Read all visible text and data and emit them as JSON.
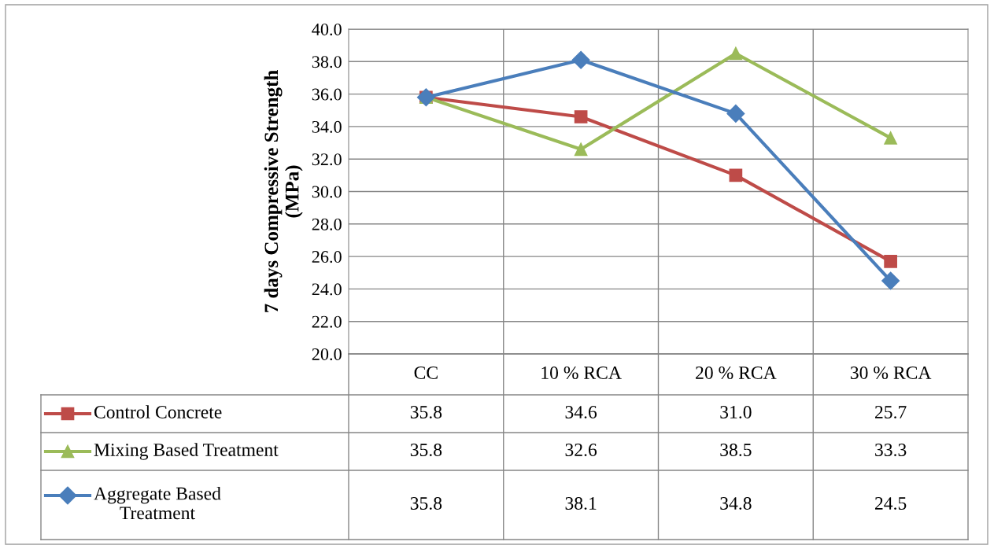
{
  "chart_data": {
    "type": "line",
    "ylabel": "7 days Compressive Strength\n(MPa)",
    "categories": [
      "CC",
      "10 % RCA",
      "20 % RCA",
      "30 % RCA"
    ],
    "series": [
      {
        "name": "Control Concrete",
        "color": "#be4b48",
        "marker": "square",
        "values": [
          35.8,
          34.6,
          31.0,
          25.7
        ],
        "value_labels": [
          "35.8",
          "34.6",
          "31.0",
          "25.7"
        ]
      },
      {
        "name": "Mixing Based Treatment",
        "color": "#9bbb59",
        "marker": "triangle",
        "values": [
          35.8,
          32.6,
          38.5,
          33.3
        ],
        "value_labels": [
          "35.8",
          "32.6",
          "38.5",
          "33.3"
        ]
      },
      {
        "name": "Aggregate Based\nTreatment",
        "color": "#4a7ebb",
        "marker": "diamond",
        "values": [
          35.8,
          38.1,
          34.8,
          24.5
        ],
        "value_labels": [
          "35.8",
          "38.1",
          "34.8",
          "24.5"
        ]
      }
    ],
    "ylim": [
      20,
      40
    ],
    "yticks": [
      {
        "value": 20,
        "label": "20.0"
      },
      {
        "value": 22,
        "label": "22.0"
      },
      {
        "value": 24,
        "label": "24.0"
      },
      {
        "value": 26,
        "label": "26.0"
      },
      {
        "value": 28,
        "label": "28.0"
      },
      {
        "value": 30,
        "label": "30.0"
      },
      {
        "value": 32,
        "label": "32.0"
      },
      {
        "value": 34,
        "label": "34.0"
      },
      {
        "value": 36,
        "label": "36.0"
      },
      {
        "value": 38,
        "label": "38.0"
      },
      {
        "value": 40,
        "label": "40.0"
      }
    ],
    "grid": true,
    "legend": "bottom left",
    "line_style": "solid"
  }
}
